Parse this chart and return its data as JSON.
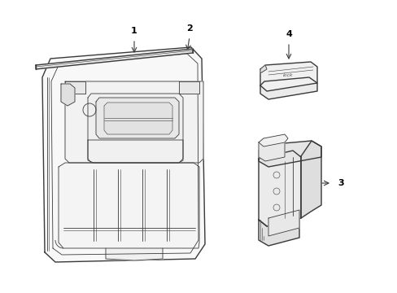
{
  "background_color": "#ffffff",
  "line_color": "#3a3a3a",
  "lw_main": 1.0,
  "lw_thin": 0.6,
  "lw_detail": 0.4,
  "figsize": [
    4.89,
    3.6
  ],
  "dpi": 100
}
